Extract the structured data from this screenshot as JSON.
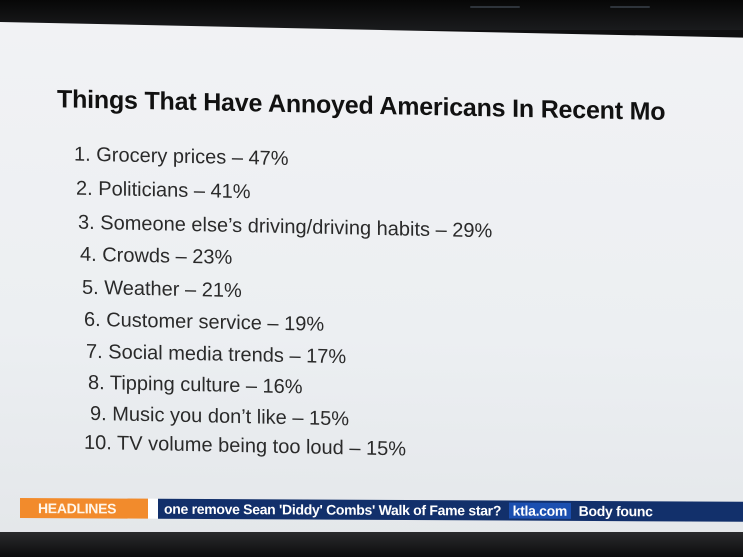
{
  "slide": {
    "title": "Things That Have Annoyed Americans In Recent Mo",
    "items": [
      "1. Grocery prices – 47%",
      "2. Politicians – 41%",
      "3. Someone else’s driving/driving habits – 29%",
      "4. Crowds – 23%",
      "5. Weather – 21%",
      "6. Customer service – 19%",
      "7. Social media trends – 17%",
      "8. Tipping culture – 16%",
      "9. Music you don’t like – 15%",
      "10. TV volume being too loud – 15%"
    ]
  },
  "ticker": {
    "label": "HEADLINES",
    "headline": "one remove Sean 'Diddy' Combs' Walk of Fame star?",
    "source": "ktla.com",
    "next": "Body founc"
  },
  "colors": {
    "ticker_label_bg": "#f28b2c",
    "ticker_bg": "#12306b",
    "screen_bg": "#f1f2f4"
  }
}
